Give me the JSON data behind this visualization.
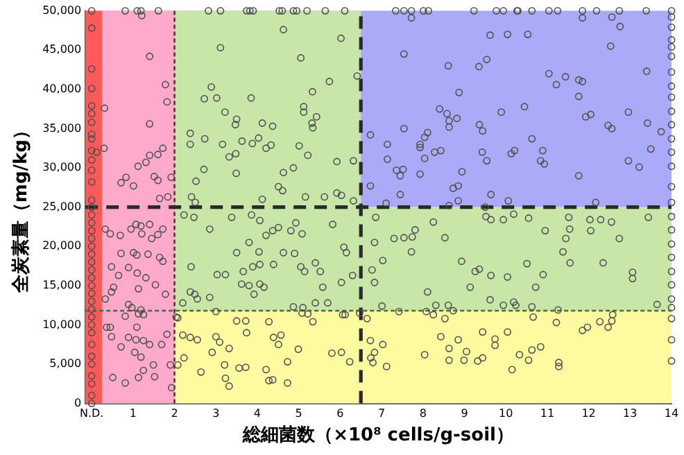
{
  "chart_data": {
    "type": "scatter",
    "xlabel": "総細菌数（×10⁸ cells/g-soil）",
    "ylabel": "全炭素量（mg/kg）",
    "xlim": [
      -0.15,
      14
    ],
    "ylim": [
      0,
      50000
    ],
    "xticks": [
      {
        "value": 0,
        "label": "N.D."
      },
      1,
      2,
      3,
      4,
      5,
      6,
      7,
      8,
      9,
      10,
      11,
      12,
      13,
      14
    ],
    "yticks": [
      0,
      {
        "value": 5000,
        "label": "5,000"
      },
      {
        "value": 10000,
        "label": "10,000"
      },
      {
        "value": 15000,
        "label": "15,000"
      },
      {
        "value": 20000,
        "label": "20,000"
      },
      {
        "value": 25000,
        "label": "25,000"
      },
      {
        "value": 30000,
        "label": "30,000"
      },
      {
        "value": 35000,
        "label": "35,000"
      },
      {
        "value": 40000,
        "label": "40,000"
      },
      {
        "value": 45000,
        "label": "45,000"
      },
      {
        "value": 50000,
        "label": "50,000"
      }
    ],
    "grid": false,
    "legend": false,
    "marker": "circle",
    "bands": [
      {
        "axis": "y",
        "from": 11800,
        "to": 25000,
        "color": "#c8e6a8"
      },
      {
        "axis": "y",
        "from": 25000,
        "to": 50000,
        "color": "#aaaaf8"
      },
      {
        "axis": "x",
        "from": 2,
        "to": 6.5,
        "color": "#c8e6a8"
      },
      {
        "axis": "y",
        "from": 0,
        "to": 11800,
        "color": "#fdfaa0"
      },
      {
        "axis": "x",
        "from": 0.25,
        "to": 2,
        "color": "#ffaacb"
      },
      {
        "axis": "x",
        "from": -0.15,
        "to": 0.25,
        "color": "#ff5a5a"
      }
    ],
    "ref_lines": [
      {
        "axis": "y",
        "value": 11800,
        "color": "#4a6a3a",
        "line_style": "dotted"
      },
      {
        "axis": "x",
        "value": 2,
        "color": "#5a2030",
        "line_style": "dotted"
      },
      {
        "axis": "y",
        "value": 25000,
        "color": "#2a2a2a",
        "line_style": "dashed"
      },
      {
        "axis": "x",
        "value": 6.5,
        "color": "#2a2a2a",
        "line_style": "dashed"
      }
    ],
    "series": [
      {
        "color": "#505050",
        "x": [
          0,
          0.81,
          1.1,
          1.19,
          1.61,
          2.82,
          3.11,
          3.74,
          3.82,
          3.9,
          4.53,
          4.6,
          4.87,
          4.95,
          5.2,
          5.64,
          6.11,
          7.34,
          7.54,
          7.72,
          8.01,
          8.13,
          9.23,
          9.77,
          9.94,
          10.27,
          10.29,
          10.63,
          11.04,
          11.25,
          11.85,
          12.19,
          12.74,
          13.39,
          14,
          14,
          14,
          14,
          14,
          14,
          14,
          14,
          14,
          14,
          14,
          14,
          14,
          14,
          14,
          14,
          14,
          14,
          14,
          14,
          14,
          14,
          14,
          14,
          14,
          14,
          14,
          0,
          0,
          0,
          0,
          0,
          0,
          0,
          0,
          0,
          0,
          0,
          0,
          0,
          0,
          0,
          0,
          0,
          0,
          0,
          0,
          0,
          0,
          0,
          0,
          0,
          0,
          0,
          0,
          0,
          0,
          0,
          0,
          0,
          0,
          0,
          0,
          0,
          1.21,
          1.4,
          0.31,
          1.78,
          1.82,
          1.4,
          0.3,
          1.72,
          1.4,
          1.6,
          1.31,
          1.12,
          0.83,
          0.71,
          1.01,
          1.51,
          1.6,
          1.92,
          1.84,
          1.64,
          0.12,
          4.63,
          3.11,
          6.02,
          5.05,
          2.89,
          2.72,
          3.02,
          3.85,
          5.74,
          5.33,
          5.12,
          5.12,
          3.22,
          3.5,
          3.47,
          4.12,
          4.37,
          5.43,
          5.32,
          5.34,
          2.38,
          2.73,
          3.63,
          4.03,
          3.88,
          4.21,
          4.33,
          5.01,
          3.16,
          2.38,
          3.48,
          3.32,
          5.22,
          2.71,
          3.49,
          4.63,
          4.87,
          5.92,
          6.32,
          6.41,
          4.51,
          4.61,
          5.16,
          5.62,
          5.92,
          6.03,
          4.12,
          2.52,
          2.41,
          2.5,
          6.32,
          7.72,
          9.62,
          10.04,
          10.53,
          12.56,
          12.76,
          12.53,
          11.85,
          7.54,
          8.61,
          9.35,
          9.54,
          11.04,
          11.22,
          11.44,
          11.76,
          11.85,
          13.4,
          8.87,
          11.76,
          8.4,
          8.58,
          8.63,
          8.82,
          8.63,
          9.89,
          10.45,
          9.36,
          9.44,
          11.93,
          12.05,
          12.47,
          12.56,
          12.96,
          13.42,
          13.75,
          6.73,
          7.54,
          8.11,
          8.04,
          7.14,
          7.93,
          7.93,
          8.28,
          8.43,
          10.63,
          9.43,
          9.54,
          10.13,
          10.21,
          10.89,
          10.84,
          10.93,
          7.14,
          8.04,
          12.96,
          13.22,
          13.5,
          7.36,
          7.45,
          7.52,
          7.93,
          8.94,
          11.76,
          6.73,
          8.73,
          8.85,
          7.45,
          9.64,
          10.06,
          8.85,
          8.63,
          7.11,
          12.17,
          9.5,
          0.33,
          0.45,
          0.69,
          0.95,
          1.07,
          1.19,
          1.4,
          1.21,
          1.72,
          1.45,
          1.6,
          0.71,
          1.01,
          1.09,
          1.36,
          1.64,
          1.72,
          0.48,
          0.89,
          1.1,
          1.31,
          0.65,
          0.53,
          0.48,
          1.13,
          1.54,
          1.78,
          0.33,
          0.89,
          0.97,
          1.25,
          0.81,
          1.13,
          1.19,
          0.45,
          0.36,
          1.09,
          0.48,
          0.89,
          1.07,
          1.25,
          1.4,
          1.69,
          1.82,
          0.71,
          1.04,
          1.19,
          1.49,
          1.25,
          1.9,
          0.51,
          1.52,
          1.13,
          0.81,
          1.93,
          2.08,
          2.23,
          2.47,
          2.85,
          3.38,
          3.86,
          4.06,
          4.37,
          4.51,
          4.93,
          4.81,
          5.08,
          4.21,
          3.8,
          4.63,
          4.9,
          4.04,
          3.5,
          5.82,
          6.09,
          6.15,
          2.4,
          3.66,
          3.89,
          4.06,
          4.39,
          5.05,
          5.4,
          5.52,
          3.03,
          3.23,
          3.62,
          3.8,
          4.06,
          4.16,
          5.14,
          5.58,
          6.03,
          6.3,
          2.38,
          2.49,
          2.55,
          2.85,
          2.2,
          3.92,
          4.87,
          5.1,
          5.4,
          5.7,
          6.06,
          3.0,
          2.04,
          2.2,
          2.38,
          2.55,
          3.0,
          3.09,
          3.32,
          3.5,
          3.72,
          3.74,
          4.39,
          4.57,
          4.51,
          4.28,
          5.34,
          5.08,
          5.22,
          4.99,
          4.73,
          4.21,
          3.56,
          3.72,
          3.21,
          2.91,
          2.23,
          2.64,
          3.23,
          3.32,
          4.28,
          4.37,
          4.73,
          5.8,
          6.03,
          6.23,
          6.12,
          6.47,
          2.08,
          6.86,
          8.25,
          9.52,
          9.64,
          9.94,
          10.19,
          10.55,
          11.52,
          12.03,
          12.29,
          12.55,
          13.44,
          7.81,
          7.3,
          7.54,
          7.74,
          8.53,
          6.83,
          7.72,
          10.95,
          11.45,
          11.54,
          12.05,
          12.74,
          11.38,
          7.03,
          11.55,
          12.35,
          8.93,
          10.51,
          6.77,
          9.26,
          9.36,
          9.64,
          10.04,
          10.9,
          6.83,
          13.06,
          13.06,
          9.14,
          10.72,
          8.11,
          9.62,
          9.94,
          10.19,
          10.24,
          10.63,
          8.61,
          8.31,
          7.01,
          7.42,
          8.08,
          8.73,
          11.26,
          13.65,
          6.65,
          8.25,
          8.53,
          10.66,
          11.22,
          11.85,
          11.97,
          12.27,
          12.47,
          12.56,
          12.58,
          6.73,
          7.03,
          6.83,
          6.74,
          6.79,
          7.12,
          8.04,
          8.43,
          8.63,
          8.63,
          8.85,
          8.99,
          9.05,
          9.32,
          9.44,
          9.44,
          9.74,
          9.74,
          10.04,
          10.15,
          10.33,
          10.55,
          10.63,
          10.84,
          11.28,
          11.28
        ],
        "values": [
          50000,
          50000,
          50000,
          50000,
          50000,
          50000,
          50000,
          50000,
          50000,
          50000,
          50000,
          50000,
          50000,
          50000,
          50000,
          50000,
          50000,
          50000,
          50000,
          50000,
          50000,
          50000,
          50000,
          50000,
          50000,
          50000,
          50000,
          50000,
          50000,
          50000,
          50000,
          50000,
          50000,
          50000,
          50000,
          49200,
          47900,
          46300,
          45400,
          44200,
          42200,
          40400,
          39000,
          37200,
          35500,
          33700,
          32000,
          30200,
          27600,
          25600,
          23800,
          22100,
          20300,
          18600,
          16800,
          15100,
          13300,
          12200,
          10800,
          8100,
          5400,
          0,
          1000,
          2500,
          3500,
          5000,
          6000,
          7500,
          9000,
          10000,
          11000,
          12000,
          13000,
          14000,
          15000,
          16000,
          17000,
          18000,
          19000,
          20000,
          21000,
          22000,
          23000,
          24000,
          25000,
          25900,
          28200,
          29700,
          31000,
          32200,
          33700,
          34300,
          35800,
          36900,
          37900,
          40100,
          42600,
          47800,
          49400,
          44200,
          37600,
          40600,
          38400,
          35600,
          32500,
          32500,
          31600,
          31700,
          30700,
          30200,
          28800,
          28100,
          27700,
          28900,
          28400,
          28800,
          26300,
          26100,
          32000,
          47600,
          45300,
          46500,
          44000,
          40300,
          38800,
          38900,
          38900,
          41000,
          39700,
          37800,
          37100,
          37100,
          36200,
          35500,
          35700,
          35300,
          36500,
          35700,
          35100,
          34400,
          33700,
          33400,
          33800,
          33100,
          32500,
          32900,
          32800,
          33000,
          33000,
          31800,
          31400,
          31600,
          29800,
          29300,
          29400,
          30000,
          30800,
          30900,
          41700,
          27600,
          27100,
          26300,
          26300,
          26800,
          26500,
          26000,
          28300,
          26300,
          25600,
          25800,
          49100,
          46900,
          47000,
          47000,
          49200,
          48000,
          45500,
          49100,
          44500,
          43000,
          42900,
          43800,
          42000,
          40600,
          41600,
          41200,
          41000,
          42300,
          39600,
          39100,
          37500,
          36900,
          36000,
          36300,
          35200,
          37100,
          37800,
          35500,
          34700,
          36500,
          36800,
          35400,
          35000,
          37100,
          35700,
          34600,
          34200,
          35000,
          34500,
          33900,
          33000,
          33000,
          32600,
          32000,
          32200,
          33700,
          32000,
          30900,
          31800,
          32200,
          32200,
          30900,
          30500,
          31100,
          31200,
          30900,
          30100,
          32400,
          29700,
          29000,
          29800,
          29200,
          29500,
          29000,
          27700,
          27400,
          27700,
          26600,
          26600,
          25800,
          25800,
          25200,
          25500,
          25600,
          25000,
          22200,
          21600,
          21400,
          22200,
          22800,
          22600,
          22800,
          21600,
          22200,
          21000,
          21500,
          19100,
          19200,
          18900,
          19000,
          18600,
          18100,
          17400,
          17300,
          16600,
          16000,
          16300,
          14800,
          14200,
          14600,
          15100,
          13900,
          13300,
          12600,
          12200,
          11300,
          11100,
          11400,
          11900,
          9700,
          9700,
          9700,
          8500,
          8400,
          8100,
          8000,
          7500,
          7500,
          8800,
          7200,
          6500,
          5900,
          4900,
          4200,
          4900,
          3300,
          3400,
          3300,
          2600,
          2000,
          4900,
          24000,
          23700,
          22200,
          23700,
          24000,
          23300,
          22000,
          22400,
          23000,
          22000,
          21600,
          21400,
          20500,
          19200,
          19100,
          19300,
          19200,
          22800,
          19900,
          19200,
          17400,
          16800,
          17400,
          17700,
          17700,
          17400,
          17900,
          16800,
          16400,
          16400,
          15200,
          15000,
          15200,
          14800,
          16800,
          14800,
          15400,
          16300,
          14200,
          13900,
          13300,
          13500,
          12800,
          13900,
          12300,
          12200,
          12800,
          12800,
          11300,
          11700,
          11000,
          8700,
          8400,
          8100,
          8500,
          7800,
          7000,
          10500,
          10500,
          9000,
          8400,
          8700,
          7500,
          10400,
          10400,
          11500,
          11400,
          6900,
          5300,
          4300,
          4500,
          4600,
          4900,
          6500,
          5800,
          4000,
          3200,
          2200,
          2900,
          3000,
          2600,
          6400,
          6500,
          5300,
          11300,
          11500,
          10900,
          23700,
          23100,
          23800,
          23400,
          23400,
          24100,
          23600,
          23700,
          23400,
          23400,
          23100,
          23700,
          22100,
          21000,
          21100,
          21200,
          21100,
          20500,
          19300,
          22000,
          21000,
          22200,
          22000,
          21000,
          19300,
          18200,
          17900,
          17900,
          18100,
          17800,
          17000,
          16800,
          17100,
          16300,
          16100,
          16400,
          15400,
          16700,
          15900,
          14800,
          14800,
          14200,
          13200,
          12500,
          12900,
          12500,
          12300,
          12500,
          12500,
          12400,
          11700,
          11700,
          11800,
          11900,
          12600,
          10800,
          11300,
          10800,
          11000,
          10300,
          9300,
          9700,
          10400,
          9700,
          10500,
          11300,
          8000,
          7500,
          6500,
          5800,
          5200,
          4700,
          6200,
          8500,
          7000,
          5500,
          8100,
          5500,
          6600,
          5400,
          5800,
          9100,
          8200,
          7400,
          9100,
          4300,
          6200,
          5500,
          6800,
          7200,
          5200,
          4700
        ]
      }
    ]
  }
}
